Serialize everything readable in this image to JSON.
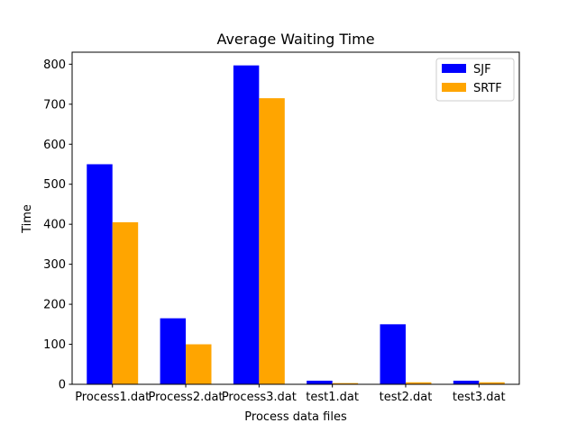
{
  "chart_data": {
    "type": "bar",
    "title": "Average Waiting Time",
    "xlabel": "Process data files",
    "ylabel": "Time",
    "categories": [
      "Process1.dat",
      "Process2.dat",
      "Process3.dat",
      "test1.dat",
      "test2.dat",
      "test3.dat"
    ],
    "series": [
      {
        "name": "SJF",
        "color": "#0000ff",
        "values": [
          550,
          165,
          797,
          9,
          150,
          9
        ]
      },
      {
        "name": "SRTF",
        "color": "#ffa500",
        "values": [
          405,
          100,
          715,
          3,
          5,
          5
        ]
      }
    ],
    "ylim": [
      0,
      830
    ],
    "yticks": [
      0,
      100,
      200,
      300,
      400,
      500,
      600,
      700,
      800
    ],
    "legend_position": "top-right",
    "grid": false
  }
}
